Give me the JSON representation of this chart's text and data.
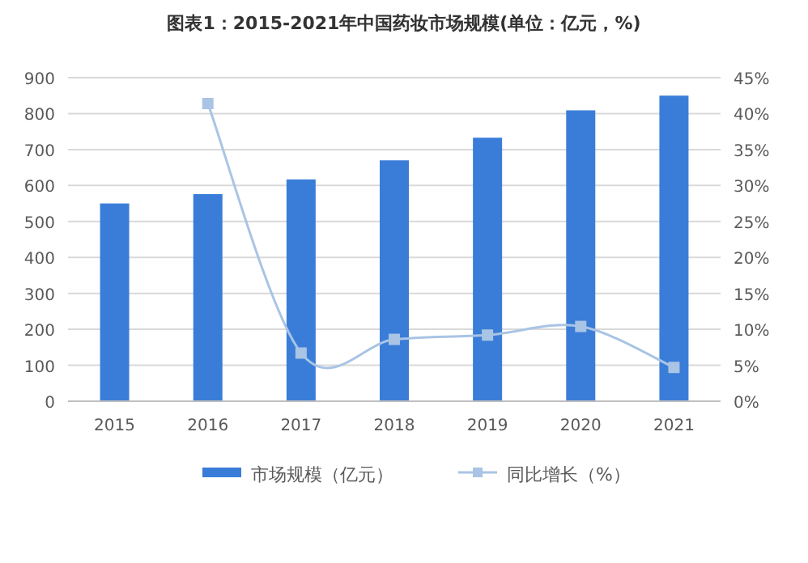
{
  "chart_data": {
    "type": "bar",
    "title": "图表1：2015-2021年中国药妆市场规模(单位：亿元，%)",
    "categories": [
      "2015",
      "2016",
      "2017",
      "2018",
      "2019",
      "2020",
      "2021"
    ],
    "series": [
      {
        "name": "市场规模（亿元）",
        "color": "#3a7dd8",
        "values": [
          550,
          576,
          617,
          670,
          733,
          809,
          850
        ]
      },
      {
        "name": "同比增长（%）",
        "type": "line",
        "axis": "y2",
        "color": "#a9c4e4",
        "marker": "square",
        "values": [
          null,
          41.4,
          6.7,
          8.6,
          9.2,
          10.4,
          4.7
        ]
      }
    ],
    "ylim": [
      0,
      900
    ],
    "yticks": [
      0,
      100,
      200,
      300,
      400,
      500,
      600,
      700,
      800,
      900
    ],
    "y2lim": [
      0,
      45
    ],
    "y2ticks": [
      {
        "value": 0,
        "label": "0%"
      },
      {
        "value": 5,
        "label": "5%"
      },
      {
        "value": 10,
        "label": "10%"
      },
      {
        "value": 15,
        "label": "15%"
      },
      {
        "value": 20,
        "label": "20%"
      },
      {
        "value": 25,
        "label": "25%"
      },
      {
        "value": 30,
        "label": "30%"
      },
      {
        "value": 35,
        "label": "35%"
      },
      {
        "value": 40,
        "label": "40%"
      },
      {
        "value": 45,
        "label": "45%"
      }
    ],
    "grid": "y",
    "legend": "bottom"
  }
}
